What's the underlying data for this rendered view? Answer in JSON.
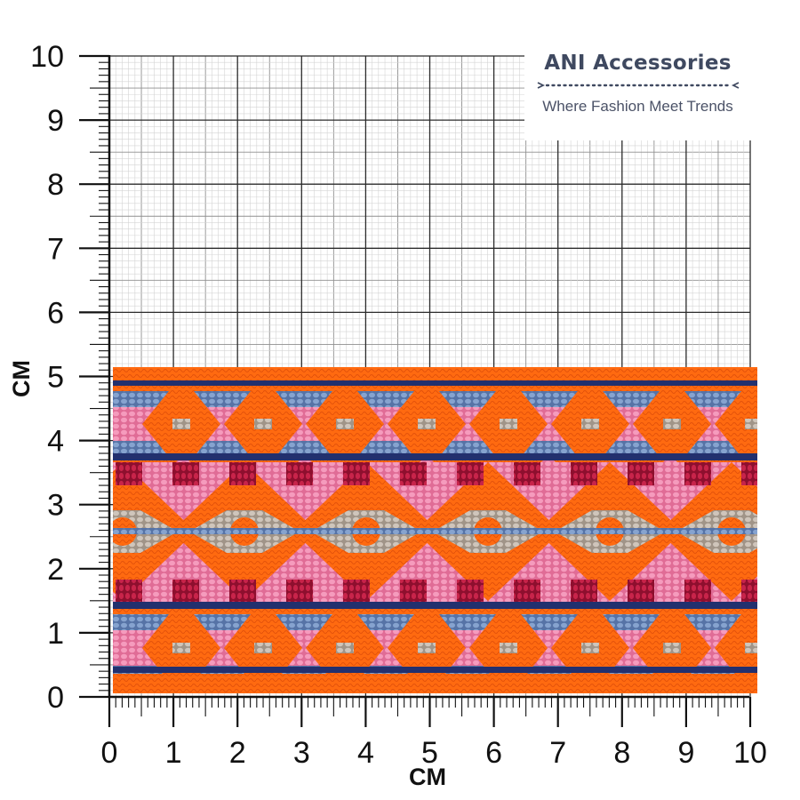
{
  "brand": {
    "name": "ANI Accessories",
    "tagline": "Where Fashion Meet Trends"
  },
  "ruler": {
    "unit_label": "CM",
    "x_ticks": [
      "0",
      "1",
      "2",
      "3",
      "4",
      "5",
      "6",
      "7",
      "8",
      "9",
      "10"
    ],
    "y_ticks": [
      "0",
      "1",
      "2",
      "3",
      "4",
      "5",
      "6",
      "7",
      "8",
      "9",
      "10"
    ]
  },
  "fabric": {
    "width_cm": 10,
    "height_cm": 5,
    "pattern": "woven jacquard ribbon",
    "colors": {
      "orange": "#ff6a10",
      "pink": "#f07fa8",
      "blue": "#6f8fbf",
      "navy": "#22306e",
      "grey": "#b8ada3",
      "red": "#b1163a"
    }
  }
}
